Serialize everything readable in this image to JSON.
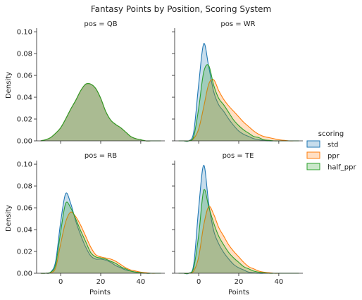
{
  "chart_data": {
    "type": "area",
    "title": "Fantasy Points by Position, Scoring System",
    "xlabel": "Points",
    "ylabel": "Density",
    "xlim": [
      -12,
      52
    ],
    "ylim": [
      0,
      0.102
    ],
    "xticks": [
      0,
      20,
      40
    ],
    "yticks": [
      0.0,
      0.02,
      0.04,
      0.06,
      0.08,
      0.1
    ],
    "xtick_labels": [
      "0",
      "20",
      "40"
    ],
    "ytick_labels": [
      "0.00",
      "0.02",
      "0.04",
      "0.06",
      "0.08",
      "0.10"
    ],
    "grid": false,
    "legend": {
      "title": "scoring",
      "placement": "right",
      "entries": [
        {
          "name": "std",
          "color": "#1f77b4"
        },
        {
          "name": "ppr",
          "color": "#ff7f0e"
        },
        {
          "name": "half_ppr",
          "color": "#2ca02c"
        }
      ]
    },
    "x": [
      -10,
      -7.5,
      -5,
      -2.5,
      0,
      2.5,
      5,
      7.5,
      10,
      12.5,
      15,
      17.5,
      20,
      22.5,
      25,
      27.5,
      30,
      32.5,
      35,
      37.5,
      40,
      42.5,
      45,
      47.5,
      50
    ],
    "panels": [
      {
        "label": "pos = QB",
        "series": [
          {
            "name": "std",
            "values": [
              0,
              0.001,
              0.003,
              0.007,
              0.012,
              0.02,
              0.029,
              0.037,
              0.046,
              0.052,
              0.052,
              0.048,
              0.039,
              0.027,
              0.019,
              0.015,
              0.012,
              0.008,
              0.004,
              0.002,
              0.001,
              0,
              0,
              0,
              0
            ]
          },
          {
            "name": "ppr",
            "values": [
              0,
              0.001,
              0.003,
              0.007,
              0.012,
              0.02,
              0.029,
              0.037,
              0.046,
              0.052,
              0.052,
              0.048,
              0.039,
              0.027,
              0.019,
              0.015,
              0.012,
              0.008,
              0.004,
              0.002,
              0.001,
              0,
              0,
              0,
              0
            ]
          },
          {
            "name": "half_ppr",
            "values": [
              0,
              0.001,
              0.003,
              0.007,
              0.012,
              0.02,
              0.029,
              0.037,
              0.046,
              0.052,
              0.052,
              0.048,
              0.039,
              0.027,
              0.019,
              0.015,
              0.012,
              0.008,
              0.004,
              0.002,
              0.001,
              0,
              0,
              0,
              0
            ]
          }
        ]
      },
      {
        "label": "pos = WR",
        "series": [
          {
            "name": "std",
            "values": [
              0,
              0,
              0,
              0.008,
              0.052,
              0.089,
              0.068,
              0.045,
              0.033,
              0.027,
              0.02,
              0.014,
              0.009,
              0.006,
              0.004,
              0.002,
              0.001,
              0.0005,
              0,
              0,
              0,
              0,
              0,
              0,
              0
            ]
          },
          {
            "name": "ppr",
            "values": [
              0,
              0,
              0,
              0.002,
              0.011,
              0.031,
              0.052,
              0.056,
              0.046,
              0.038,
              0.032,
              0.027,
              0.022,
              0.017,
              0.013,
              0.009,
              0.006,
              0.004,
              0.003,
              0.002,
              0.001,
              0.0005,
              0,
              0,
              0
            ]
          },
          {
            "name": "half_ppr",
            "values": [
              0,
              0,
              0,
              0.004,
              0.03,
              0.063,
              0.069,
              0.051,
              0.039,
              0.033,
              0.026,
              0.019,
              0.014,
              0.01,
              0.007,
              0.004,
              0.003,
              0.001,
              0.0005,
              0,
              0,
              0,
              0,
              0,
              0
            ]
          }
        ]
      },
      {
        "label": "pos = RB",
        "series": [
          {
            "name": "std",
            "values": [
              0,
              0,
              0.001,
              0.011,
              0.047,
              0.073,
              0.064,
              0.048,
              0.035,
              0.024,
              0.016,
              0.013,
              0.013,
              0.012,
              0.01,
              0.007,
              0.005,
              0.003,
              0.002,
              0.001,
              0.0005,
              0,
              0,
              0,
              0
            ]
          },
          {
            "name": "ppr",
            "values": [
              0,
              0,
              0.0005,
              0.005,
              0.027,
              0.047,
              0.056,
              0.052,
              0.044,
              0.034,
              0.024,
              0.017,
              0.015,
              0.014,
              0.013,
              0.011,
              0.008,
              0.005,
              0.003,
              0.002,
              0.001,
              0.0005,
              0,
              0,
              0
            ]
          },
          {
            "name": "half_ppr",
            "values": [
              0,
              0,
              0.001,
              0.008,
              0.038,
              0.064,
              0.06,
              0.05,
              0.039,
              0.029,
              0.019,
              0.015,
              0.014,
              0.013,
              0.011,
              0.009,
              0.006,
              0.004,
              0.002,
              0.001,
              0.0005,
              0,
              0,
              0,
              0
            ]
          }
        ]
      },
      {
        "label": "pos = TE",
        "series": [
          {
            "name": "std",
            "values": [
              0,
              0,
              0,
              0.008,
              0.06,
              0.099,
              0.064,
              0.039,
              0.027,
              0.019,
              0.013,
              0.008,
              0.005,
              0.003,
              0.001,
              0.0005,
              0,
              0,
              0,
              0,
              0,
              0,
              0,
              0,
              0
            ]
          },
          {
            "name": "ppr",
            "values": [
              0,
              0,
              0,
              0.002,
              0.015,
              0.044,
              0.061,
              0.054,
              0.042,
              0.034,
              0.026,
              0.02,
              0.015,
              0.01,
              0.006,
              0.004,
              0.002,
              0.001,
              0.0005,
              0,
              0,
              0,
              0,
              0,
              0
            ]
          },
          {
            "name": "half_ppr",
            "values": [
              0,
              0,
              0,
              0.005,
              0.035,
              0.076,
              0.061,
              0.046,
              0.034,
              0.026,
              0.019,
              0.014,
              0.01,
              0.006,
              0.004,
              0.002,
              0.001,
              0.0005,
              0,
              0,
              0,
              0,
              0,
              0,
              0
            ]
          }
        ]
      }
    ]
  }
}
